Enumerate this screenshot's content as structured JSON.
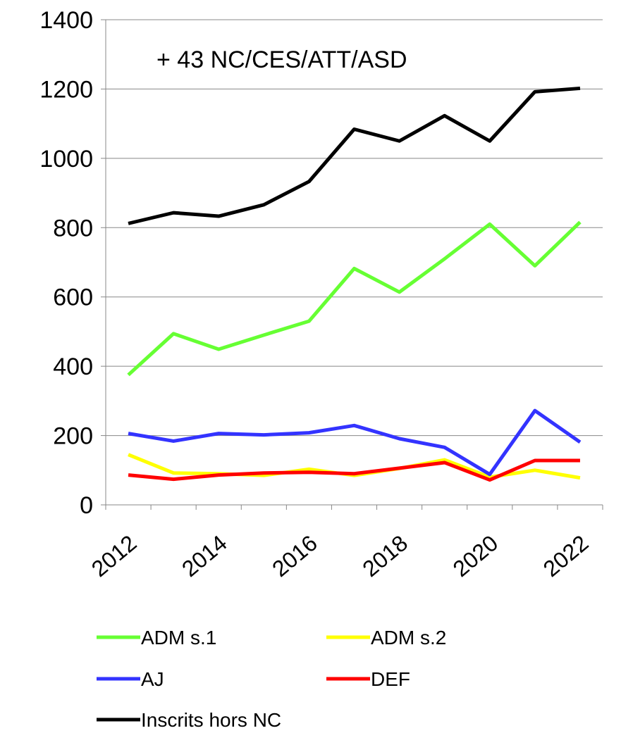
{
  "chart_data": {
    "type": "line",
    "annotation": "+ 43 NC/CES/ATT/ASD",
    "categories": [
      "2012",
      null,
      "2014",
      null,
      "2016",
      null,
      "2018",
      null,
      "2020",
      null,
      "2022"
    ],
    "series": [
      {
        "name": "ADM s.1",
        "color": "#66ff33",
        "values": [
          375,
          494,
          449,
          490,
          530,
          682,
          614,
          710,
          810,
          690,
          816
        ]
      },
      {
        "name": "ADM s.2",
        "color": "#ffff00",
        "values": [
          145,
          92,
          90,
          85,
          103,
          85,
          105,
          130,
          80,
          100,
          78
        ]
      },
      {
        "name": "AJ",
        "color": "#3333ff",
        "values": [
          206,
          184,
          206,
          202,
          208,
          229,
          191,
          166,
          88,
          272,
          181
        ]
      },
      {
        "name": "DEF",
        "color": "#ff0000",
        "values": [
          86,
          74,
          86,
          92,
          94,
          90,
          106,
          122,
          72,
          128,
          128
        ]
      },
      {
        "name": "Inscrits hors NC",
        "color": "#000000",
        "values": [
          812,
          843,
          833,
          866,
          933,
          1084,
          1050,
          1123,
          1050,
          1192,
          1202
        ]
      }
    ],
    "ylim": [
      0,
      1400
    ],
    "yticks": [
      0,
      200,
      400,
      600,
      800,
      1000,
      1200,
      1400
    ],
    "grid": true
  }
}
